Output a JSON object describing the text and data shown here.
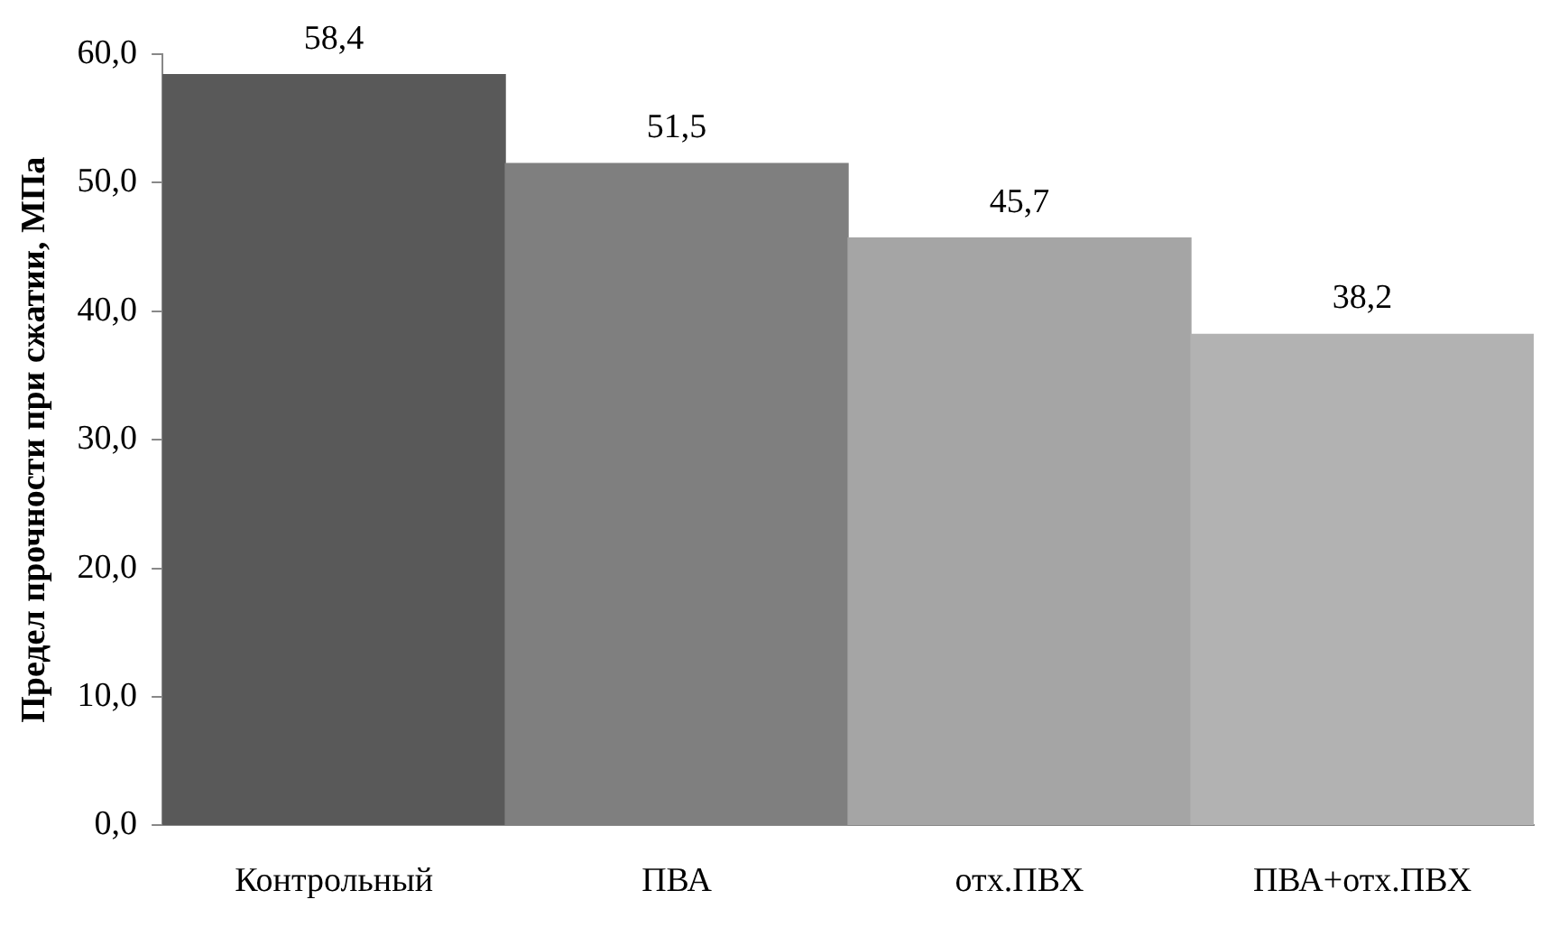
{
  "chart_data": {
    "type": "bar",
    "ylabel": "Предел прочности при сжатии, МПа",
    "categories": [
      "Контрольный",
      "ПВА",
      "отх.ПВХ",
      "ПВА+отх.ПВХ"
    ],
    "values": [
      58.4,
      51.5,
      45.7,
      38.2
    ],
    "colors": [
      "#595959",
      "#7f7f7f",
      "#a5a5a5",
      "#b2b2b2"
    ],
    "value_labels": [
      "58,4",
      "51,5",
      "45,7",
      "38,2"
    ],
    "ylim": [
      0,
      60
    ],
    "yticks": [
      {
        "value": 0,
        "label": "0,0"
      },
      {
        "value": 10,
        "label": "10,0"
      },
      {
        "value": 20,
        "label": "20,0"
      },
      {
        "value": 30,
        "label": "30,0"
      },
      {
        "value": 40,
        "label": "40,0"
      },
      {
        "value": 50,
        "label": "50,0"
      },
      {
        "value": 60,
        "label": "60,0"
      }
    ],
    "grid": false,
    "legend": false
  }
}
